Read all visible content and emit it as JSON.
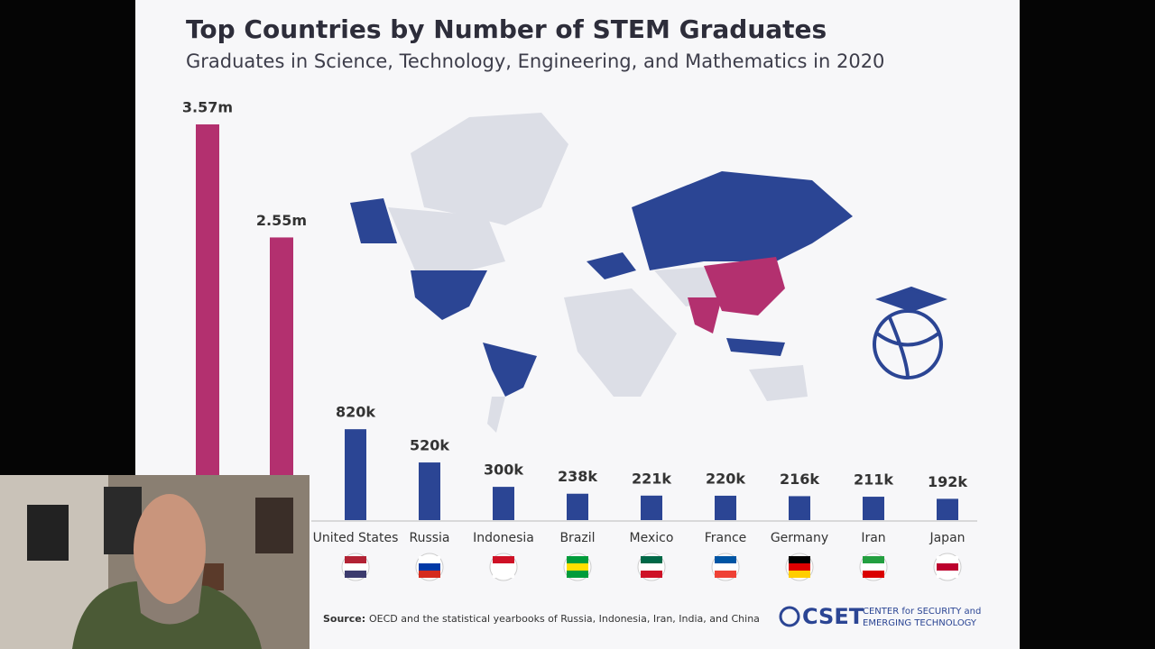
{
  "chart_data": {
    "type": "bar",
    "title": "Top Countries by Number of STEM Graduates",
    "subtitle": "Graduates in Science, Technology, Engineering, and Mathematics in 2020",
    "categories": [
      null,
      null,
      "United States",
      "Russia",
      "Indonesia",
      "Brazil",
      "Mexico",
      "France",
      "Germany",
      "Iran",
      "Japan"
    ],
    "values": [
      3570000,
      2550000,
      820000,
      520000,
      300000,
      238000,
      221000,
      220000,
      216000,
      211000,
      192000
    ],
    "value_labels": [
      "3.57m",
      "2.55m",
      "820k",
      "520k",
      "300k",
      "238k",
      "221k",
      "220k",
      "216k",
      "211k",
      "192k"
    ],
    "colors": [
      "#b3306f",
      "#b3306f",
      "#2b4594",
      "#2b4594",
      "#2b4594",
      "#2b4594",
      "#2b4594",
      "#2b4594",
      "#2b4594",
      "#2b4594",
      "#2b4594"
    ],
    "source_label": "Source:",
    "source": "OECD and the statistical yearbooks of Russia, Indonesia, Iran, India, and China",
    "logo": "CSET",
    "logo_line1": "CENTER for SECURITY and",
    "logo_line2": "EMERGING TECHNOLOGY"
  }
}
